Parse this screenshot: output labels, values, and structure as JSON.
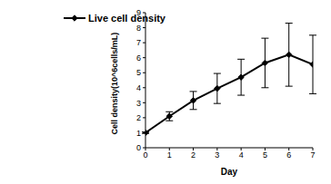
{
  "chart_data": {
    "type": "line",
    "x_label": "Day",
    "y_label": "Cell density(10^6cells/mL)",
    "x": [
      0,
      1,
      2,
      3,
      4,
      5,
      6,
      7
    ],
    "series": [
      {
        "name": "Live cell density",
        "color": "#000000",
        "marker": "diamond",
        "line_style": "solid",
        "values": [
          1.0,
          2.1,
          3.15,
          3.95,
          4.7,
          5.65,
          6.2,
          5.55
        ],
        "errors": [
          0.05,
          0.3,
          0.6,
          1.0,
          1.2,
          1.65,
          2.1,
          1.95
        ]
      }
    ],
    "xlim": [
      0,
      7
    ],
    "xticks": [
      0,
      1,
      2,
      3,
      4,
      5,
      6,
      7
    ],
    "ylim": [
      0,
      9
    ],
    "yticks": [
      0,
      1,
      2,
      3,
      4,
      5,
      6,
      7,
      8,
      9
    ],
    "grid": false,
    "legend": "upper left"
  }
}
